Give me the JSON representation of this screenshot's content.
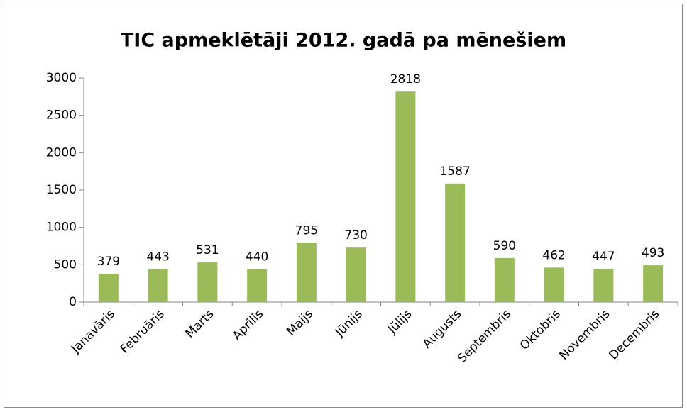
{
  "chart_data": {
    "type": "bar",
    "title": "TIC apmeklētāji 2012. gadā pa mēnešiem",
    "categories": [
      "Janavāris",
      "Februāris",
      "Marts",
      "Aprīlis",
      "Maijs",
      "Jūnijs",
      "Jūlijs",
      "Augusts",
      "Septembris",
      "Oktobris",
      "Novembris",
      "Decembris"
    ],
    "values": [
      379,
      443,
      531,
      440,
      795,
      730,
      2818,
      1587,
      590,
      462,
      447,
      493
    ],
    "color": "#9bbb59",
    "ylim": [
      0,
      3000
    ],
    "yticks": [
      0,
      500,
      1000,
      1500,
      2000,
      2500,
      3000
    ],
    "grid": false
  }
}
